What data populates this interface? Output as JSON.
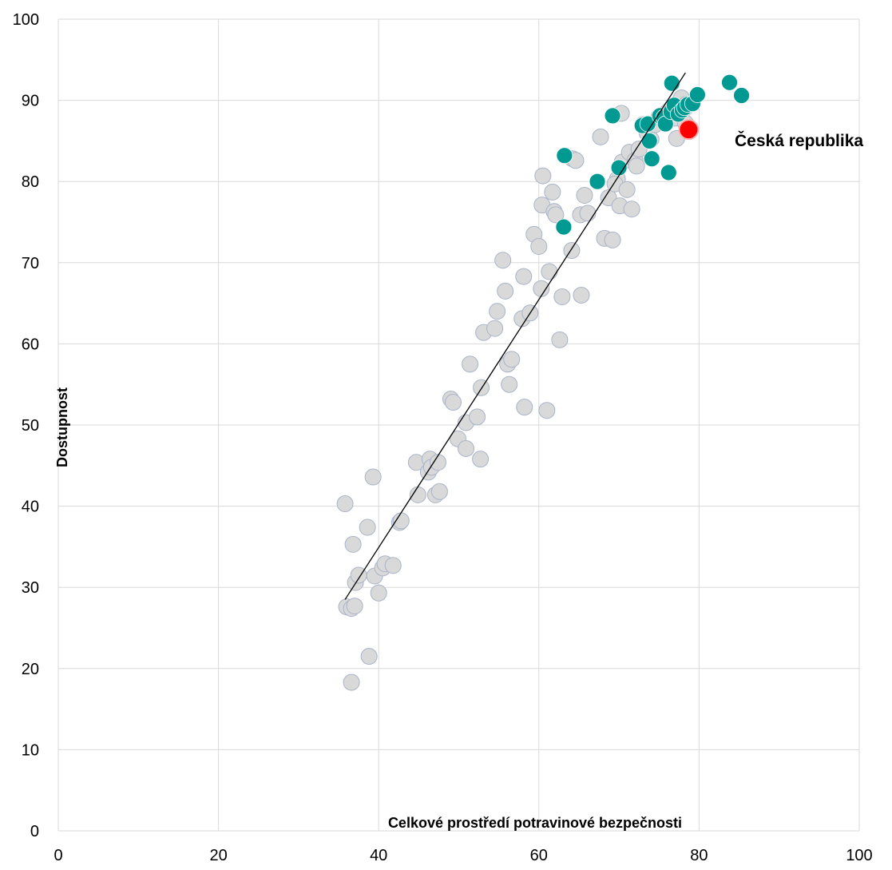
{
  "chart_data": {
    "type": "scatter",
    "xlabel": "Celkové prostředí potravinové bezpečnosti",
    "ylabel": "Dostupnost",
    "xlim": [
      0,
      100
    ],
    "ylim": [
      0,
      100
    ],
    "xticks": [
      "0",
      "20",
      "40",
      "60",
      "80",
      "100"
    ],
    "yticks": [
      "0",
      "10",
      "20",
      "30",
      "40",
      "50",
      "60",
      "70",
      "80",
      "90",
      "100"
    ],
    "grid": true,
    "legend": "none",
    "colors": {
      "other": "#d9d9d9",
      "other_edge": "#a9b4c8",
      "highlight": "#009a92",
      "czech": "#ff0000",
      "trend": "#000000"
    },
    "annotation": {
      "text": "Česká republika",
      "x": 78.7,
      "y": 86.4
    },
    "trendline": {
      "x": [
        35.8,
        78.3
      ],
      "y": [
        28.5,
        93.4
      ]
    },
    "series": [
      {
        "role": "other",
        "points": [
          [
            35.8,
            40.3
          ],
          [
            36.8,
            35.3
          ],
          [
            36,
            27.6
          ],
          [
            36.6,
            27.4
          ],
          [
            37,
            27.7
          ],
          [
            37.1,
            30.6
          ],
          [
            37.5,
            31.5
          ],
          [
            38.6,
            37.4
          ],
          [
            39.3,
            43.6
          ],
          [
            39.5,
            31.4
          ],
          [
            40,
            29.3
          ],
          [
            40.5,
            32.4
          ],
          [
            40.8,
            32.9
          ],
          [
            41.8,
            32.7
          ],
          [
            42.6,
            38
          ],
          [
            42.8,
            38.2
          ],
          [
            38.8,
            21.5
          ],
          [
            36.6,
            18.3
          ],
          [
            44.7,
            45.4
          ],
          [
            44.9,
            41.4
          ],
          [
            46.2,
            44.2
          ],
          [
            46.4,
            45.8
          ],
          [
            46.6,
            44.8
          ],
          [
            47.4,
            45.4
          ],
          [
            47.1,
            41.4
          ],
          [
            47.6,
            41.8
          ],
          [
            49,
            53.2
          ],
          [
            49.3,
            52.8
          ],
          [
            49.9,
            48.3
          ],
          [
            50.9,
            47.1
          ],
          [
            50.9,
            50.3
          ],
          [
            51.4,
            57.5
          ],
          [
            52.3,
            51
          ],
          [
            52.8,
            54.6
          ],
          [
            52.7,
            45.8
          ],
          [
            53.1,
            61.4
          ],
          [
            54.5,
            61.9
          ],
          [
            54.8,
            64
          ],
          [
            55.5,
            70.3
          ],
          [
            55.8,
            66.5
          ],
          [
            56.1,
            57.5
          ],
          [
            56.3,
            55
          ],
          [
            56.6,
            58.1
          ],
          [
            57.9,
            63.1
          ],
          [
            58.1,
            68.3
          ],
          [
            58.2,
            52.2
          ],
          [
            58.9,
            63.8
          ],
          [
            59.4,
            73.5
          ],
          [
            60,
            72
          ],
          [
            60.3,
            66.8
          ],
          [
            60.4,
            77.1
          ],
          [
            60.5,
            80.7
          ],
          [
            61.3,
            68.9
          ],
          [
            61.7,
            78.7
          ],
          [
            61.9,
            76.3
          ],
          [
            62.1,
            75.9
          ],
          [
            62.6,
            60.5
          ],
          [
            62.9,
            65.8
          ],
          [
            61,
            51.8
          ],
          [
            64.1,
            71.5
          ],
          [
            64.2,
            82.8
          ],
          [
            64.6,
            82.6
          ],
          [
            65.2,
            75.9
          ],
          [
            65.3,
            66
          ],
          [
            65.7,
            78.3
          ],
          [
            66.1,
            76.1
          ],
          [
            67.7,
            85.5
          ],
          [
            68.2,
            73
          ],
          [
            68.7,
            78
          ],
          [
            69.2,
            72.8
          ],
          [
            69.8,
            80.3
          ],
          [
            69.5,
            79.7
          ],
          [
            70.1,
            77
          ],
          [
            70.3,
            88.4
          ],
          [
            70.4,
            82.4
          ],
          [
            71,
            79
          ],
          [
            71.3,
            83.6
          ],
          [
            71.6,
            76.6
          ],
          [
            72,
            82.6
          ],
          [
            72.2,
            81.9
          ],
          [
            72.5,
            84
          ],
          [
            73,
            87
          ],
          [
            73.5,
            86
          ],
          [
            74,
            85.2
          ],
          [
            74.5,
            87
          ],
          [
            75,
            88
          ],
          [
            75.5,
            87.8
          ],
          [
            76,
            88.5
          ],
          [
            76.5,
            89
          ],
          [
            77,
            87.8
          ],
          [
            77.2,
            85.3
          ],
          [
            77.5,
            89.8
          ],
          [
            77.8,
            90.3
          ],
          [
            78.2,
            89
          ],
          [
            78.3,
            87.2
          ],
          [
            78.4,
            89.5
          ]
        ]
      },
      {
        "role": "highlight",
        "points": [
          [
            63.2,
            83.2
          ],
          [
            63.1,
            74.4
          ],
          [
            67.3,
            80
          ],
          [
            69.2,
            88.1
          ],
          [
            70,
            81.7
          ],
          [
            72.9,
            86.9
          ],
          [
            73.6,
            87.1
          ],
          [
            73.8,
            85
          ],
          [
            74.1,
            82.8
          ],
          [
            75.1,
            88.1
          ],
          [
            75.6,
            87.9
          ],
          [
            75.8,
            87.1
          ],
          [
            76.2,
            81.1
          ],
          [
            76.5,
            88.6
          ],
          [
            76.6,
            92.1
          ],
          [
            76.9,
            89.4
          ],
          [
            77.4,
            88.3
          ],
          [
            77.9,
            88.8
          ],
          [
            78.2,
            89.1
          ],
          [
            78.6,
            89.5
          ],
          [
            79.2,
            89.6
          ],
          [
            79.8,
            90.7
          ],
          [
            83.8,
            92.2
          ],
          [
            85.3,
            90.6
          ]
        ]
      },
      {
        "role": "czech",
        "points": [
          [
            78.7,
            86.4
          ]
        ]
      }
    ]
  }
}
